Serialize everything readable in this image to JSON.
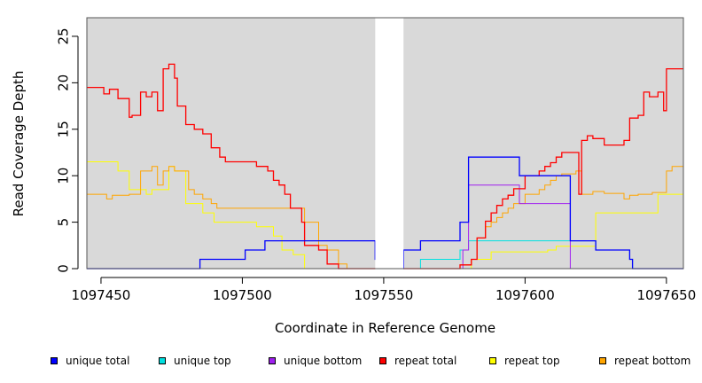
{
  "chart_data": {
    "type": "line",
    "xlabel": "Coordinate in Reference Genome",
    "ylabel": "Read Coverage Depth",
    "xlim": [
      1097445,
      1097656
    ],
    "ylim": [
      0,
      27
    ],
    "x_ticks": [
      1097450,
      1097500,
      1097550,
      1097600,
      1097650
    ],
    "x_tick_labels": [
      "1097450",
      "1097500",
      "1097550",
      "1097600",
      "1097650"
    ],
    "y_ticks": [
      0,
      5,
      10,
      15,
      20,
      25
    ],
    "y_tick_labels": [
      "0",
      "5",
      "10",
      "15",
      "20",
      "25"
    ],
    "background": "#d9d9d9",
    "gap": [
      1097547,
      1097557
    ],
    "grid": false,
    "legend_position": "bottom",
    "series": [
      {
        "name": "unique total",
        "color": "#0000ff",
        "x": [
          1097445,
          1097485,
          1097501,
          1097508,
          1097547,
          1097552,
          1097557,
          1097563,
          1097577,
          1097580,
          1097598,
          1097616,
          1097625,
          1097637,
          1097638,
          1097656
        ],
        "y": [
          0,
          1,
          2,
          3,
          1,
          0,
          2,
          3,
          5,
          12,
          10,
          3,
          2,
          1,
          0,
          0
        ]
      },
      {
        "name": "unique top",
        "color": "#00e0e0",
        "x": [
          1097445,
          1097547,
          1097552,
          1097558,
          1097563,
          1097577,
          1097580,
          1097616,
          1097625,
          1097637,
          1097638,
          1097656
        ],
        "y": [
          0,
          0,
          0,
          0,
          1,
          2,
          3,
          3,
          2,
          1,
          0,
          0
        ]
      },
      {
        "name": "unique bottom",
        "color": "#a020f0",
        "x": [
          1097445,
          1097547,
          1097578,
          1097580,
          1097598,
          1097616,
          1097656
        ],
        "y": [
          0,
          0,
          2,
          9,
          7,
          0,
          0
        ]
      },
      {
        "name": "repeat total",
        "color": "#ff0000",
        "x": [
          1097445,
          1097451,
          1097453,
          1097456,
          1097460,
          1097461,
          1097464,
          1097466,
          1097468,
          1097470,
          1097472,
          1097474,
          1097476,
          1097477,
          1097478,
          1097480,
          1097483,
          1097486,
          1097489,
          1097492,
          1097494,
          1097497,
          1097505,
          1097509,
          1097511,
          1097513,
          1097515,
          1097517,
          1097521,
          1097522,
          1097527,
          1097530,
          1097534,
          1097537,
          1097554,
          1097577,
          1097581,
          1097583,
          1097584,
          1097586,
          1097588,
          1097590,
          1097592,
          1097594,
          1097596,
          1097600,
          1097605,
          1097607,
          1097609,
          1097611,
          1097613,
          1097618,
          1097619,
          1097620,
          1097622,
          1097624,
          1097626,
          1097628,
          1097635,
          1097637,
          1097640,
          1097642,
          1097644,
          1097647,
          1097649,
          1097650,
          1097652,
          1097656
        ],
        "y": [
          19.5,
          18.8,
          19.3,
          18.3,
          16.3,
          16.5,
          19,
          18.5,
          19,
          17,
          21.5,
          22,
          20.5,
          17.5,
          17.5,
          15.5,
          15,
          14.5,
          13,
          12,
          11.5,
          11.5,
          11,
          10.5,
          9.5,
          9,
          8,
          6.5,
          5,
          2.5,
          2,
          0.5,
          0,
          0,
          0,
          0.4,
          1,
          3.3,
          3.3,
          5.1,
          6,
          6.8,
          7.5,
          7.9,
          8.6,
          10,
          10.5,
          11,
          11.4,
          12,
          12.5,
          12.5,
          8,
          13.8,
          14.3,
          14,
          14,
          13.3,
          13.8,
          16.2,
          16.5,
          19,
          18.5,
          19,
          17,
          21.5,
          21.5,
          21.5
        ]
      },
      {
        "name": "repeat top",
        "color": "#ffff00",
        "x": [
          1097445,
          1097456,
          1097460,
          1097466,
          1097468,
          1097474,
          1097476,
          1097480,
          1097486,
          1097490,
          1097505,
          1097511,
          1097514,
          1097518,
          1097522,
          1097542,
          1097547,
          1097577,
          1097581,
          1097584,
          1097588,
          1097592,
          1097596,
          1097600,
          1097604,
          1097608,
          1097611,
          1097617,
          1097619,
          1097622,
          1097625,
          1097640,
          1097647,
          1097649,
          1097652,
          1097656
        ],
        "y": [
          11.5,
          10.5,
          8.5,
          8,
          8.5,
          11,
          10.5,
          7,
          6,
          5,
          4.5,
          3.5,
          2,
          1.5,
          0,
          0,
          0,
          0,
          1,
          1,
          1.8,
          1.8,
          1.8,
          1.8,
          1.8,
          2,
          2.4,
          2.4,
          2.4,
          2.4,
          6,
          6,
          8,
          8,
          8,
          8
        ]
      },
      {
        "name": "repeat bottom",
        "color": "#ffa500",
        "x": [
          1097445,
          1097450,
          1097452,
          1097454,
          1097460,
          1097464,
          1097468,
          1097470,
          1097472,
          1097474,
          1097476,
          1097478,
          1097481,
          1097483,
          1097486,
          1097489,
          1097491,
          1097494,
          1097520,
          1097522,
          1097527,
          1097530,
          1097534,
          1097537,
          1097554,
          1097577,
          1097581,
          1097583,
          1097584,
          1097586,
          1097588,
          1097590,
          1097592,
          1097594,
          1097596,
          1097600,
          1097605,
          1097607,
          1097609,
          1097611,
          1097613,
          1097618,
          1097620,
          1097622,
          1097624,
          1097628,
          1097635,
          1097637,
          1097640,
          1097645,
          1097650,
          1097652,
          1097656
        ],
        "y": [
          8,
          8,
          7.5,
          7.9,
          8,
          10.5,
          11,
          9,
          10.5,
          11,
          10.5,
          10.5,
          8.5,
          8,
          7.5,
          7,
          6.5,
          6.5,
          6.5,
          5,
          2.5,
          2,
          0.5,
          0,
          0,
          0.4,
          1,
          3.3,
          3.3,
          4.5,
          5,
          5.5,
          6,
          6.5,
          7,
          8,
          8.5,
          9,
          9.5,
          10,
          10.2,
          10.5,
          8,
          8,
          8.3,
          8.1,
          7.5,
          7.9,
          8,
          8.2,
          10.5,
          11,
          11
        ]
      }
    ]
  }
}
